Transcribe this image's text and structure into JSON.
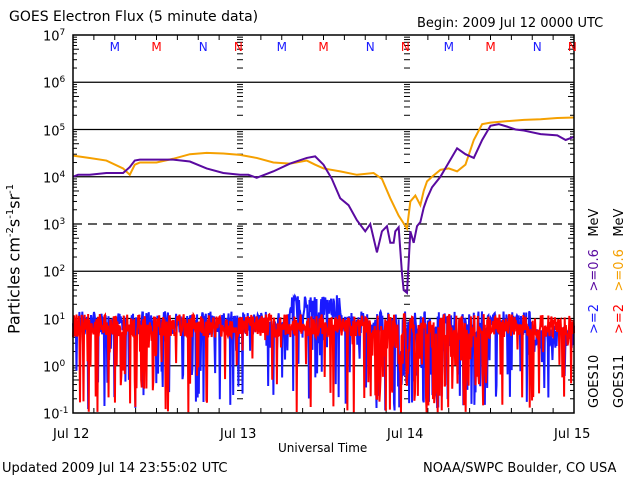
{
  "chart_data": {
    "type": "line",
    "title": "GOES Electron Flux (5 minute data)",
    "subtitle": "Begin: 2009 Jul 12 0000 UTC",
    "xlabel": "Universal Time",
    "ylabel": "Particles cm⁻²s⁻¹sr⁻¹",
    "ylabel_parts": {
      "base": "Particles cm",
      "e1": "-2",
      "s": "s",
      "e2": "-1",
      "sr": "sr",
      "e3": "-1"
    },
    "yscale": "log",
    "ylim": [
      0.1,
      10000000
    ],
    "xlim": [
      0,
      3
    ],
    "x_ticks": [
      {
        "value": 0,
        "label": "Jul 12"
      },
      {
        "value": 1,
        "label": "Jul 13"
      },
      {
        "value": 2,
        "label": "Jul 14"
      },
      {
        "value": 3,
        "label": "Jul 15"
      }
    ],
    "y_ticks": [
      {
        "exp": 7,
        "label": "10",
        "sup": "7"
      },
      {
        "exp": 6,
        "label": "10",
        "sup": "6"
      },
      {
        "exp": 5,
        "label": "10",
        "sup": "5"
      },
      {
        "exp": 4,
        "label": "10",
        "sup": "4"
      },
      {
        "exp": 3,
        "label": "10",
        "sup": "3"
      },
      {
        "exp": 2,
        "label": "10",
        "sup": "2"
      },
      {
        "exp": 1,
        "label": "10",
        "sup": "1"
      },
      {
        "exp": 0,
        "label": "10",
        "sup": "0"
      },
      {
        "exp": -1,
        "label": "10",
        "sup": "-1"
      }
    ],
    "grid_lines": [
      {
        "exp": 6,
        "style": "solid"
      },
      {
        "exp": 5,
        "style": "solid"
      },
      {
        "exp": 4,
        "style": "solid"
      },
      {
        "exp": 3,
        "style": "dashed"
      },
      {
        "exp": 2,
        "style": "solid"
      },
      {
        "exp": 1,
        "style": "solid"
      },
      {
        "exp": 0,
        "style": "solid"
      }
    ],
    "noon_midnight_markers": [
      {
        "x": 0.25,
        "label": "M",
        "color": "#1a1aff"
      },
      {
        "x": 0.5,
        "label": "M",
        "color": "#ff0000"
      },
      {
        "x": 0.78,
        "label": "N",
        "color": "#1a1aff"
      },
      {
        "x": 0.99,
        "label": "N",
        "color": "#ff0000"
      },
      {
        "x": 1.25,
        "label": "M",
        "color": "#1a1aff"
      },
      {
        "x": 1.5,
        "label": "M",
        "color": "#ff0000"
      },
      {
        "x": 1.78,
        "label": "N",
        "color": "#1a1aff"
      },
      {
        "x": 1.99,
        "label": "N",
        "color": "#ff0000"
      },
      {
        "x": 2.25,
        "label": "M",
        "color": "#1a1aff"
      },
      {
        "x": 2.5,
        "label": "M",
        "color": "#ff0000"
      },
      {
        "x": 2.78,
        "label": "N",
        "color": "#1a1aff"
      },
      {
        "x": 2.99,
        "label": "N",
        "color": "#ff0000"
      }
    ],
    "series": [
      {
        "name": "GOES10 >=0.6 MeV",
        "color": "#5a0aa0",
        "x": [
          0.0,
          0.03,
          0.1,
          0.2,
          0.3,
          0.34,
          0.37,
          0.4,
          0.5,
          0.6,
          0.7,
          0.8,
          0.9,
          1.0,
          1.05,
          1.1,
          1.2,
          1.3,
          1.4,
          1.45,
          1.5,
          1.55,
          1.6,
          1.65,
          1.7,
          1.75,
          1.78,
          1.82,
          1.85,
          1.88,
          1.9,
          1.92,
          1.93,
          1.95,
          1.97,
          1.98,
          2.0,
          2.02,
          2.04,
          2.06,
          2.08,
          2.1,
          2.12,
          2.15,
          2.2,
          2.25,
          2.3,
          2.35,
          2.4,
          2.45,
          2.5,
          2.55,
          2.6,
          2.65,
          2.7,
          2.8,
          2.9,
          2.95,
          3.0
        ],
        "values": [
          10000,
          11000,
          11000,
          12000,
          12000,
          16000,
          22000,
          23000,
          23000,
          23000,
          21000,
          15000,
          12000,
          11000,
          11000,
          9500,
          13000,
          19000,
          25000,
          27000,
          18000,
          9000,
          3500,
          2500,
          1200,
          700,
          1000,
          250,
          700,
          900,
          400,
          400,
          700,
          850,
          90,
          40,
          35,
          700,
          400,
          900,
          1100,
          2200,
          3500,
          6000,
          10000,
          20000,
          40000,
          30000,
          25000,
          60000,
          120000,
          130000,
          115000,
          100000,
          95000,
          80000,
          75000,
          60000,
          70000
        ]
      },
      {
        "name": "GOES11 >=0.6 MeV",
        "color": "#f5a000",
        "x": [
          0.0,
          0.1,
          0.2,
          0.3,
          0.34,
          0.37,
          0.4,
          0.5,
          0.6,
          0.7,
          0.8,
          0.9,
          1.0,
          1.1,
          1.2,
          1.3,
          1.4,
          1.45,
          1.5,
          1.6,
          1.7,
          1.8,
          1.85,
          1.9,
          1.95,
          2.0,
          2.02,
          2.05,
          2.08,
          2.1,
          2.12,
          2.15,
          2.2,
          2.25,
          2.3,
          2.35,
          2.4,
          2.45,
          2.5,
          2.6,
          2.7,
          2.8,
          2.9,
          3.0
        ],
        "values": [
          28000,
          25000,
          22000,
          15000,
          11000,
          18000,
          20000,
          20000,
          24000,
          30000,
          32000,
          31000,
          29000,
          25000,
          20000,
          19000,
          22000,
          18000,
          15000,
          13000,
          11000,
          12000,
          9000,
          3500,
          1500,
          800,
          3000,
          4000,
          2500,
          5000,
          8000,
          10000,
          14000,
          15000,
          13000,
          18000,
          60000,
          130000,
          140000,
          150000,
          160000,
          165000,
          175000,
          180000
        ]
      },
      {
        "name": "GOES10 >=2 MeV",
        "color": "#1a1aff",
        "description_values_range": [
          0.1,
          30
        ],
        "typical_level": 8
      },
      {
        "name": "GOES11 >=2 MeV",
        "color": "#ff0000",
        "description_values_range": [
          0.1,
          15
        ],
        "typical_level": 7
      }
    ],
    "legend": {
      "placement": "right",
      "columns": [
        {
          "satellite": "GOES10",
          "entries": [
            {
              "text": ">=2",
              "color": "#1a1aff"
            },
            {
              "text": ">=0.6",
              "color": "#5a0aa0"
            }
          ],
          "unit": "MeV"
        },
        {
          "satellite": "GOES11",
          "entries": [
            {
              "text": ">=2",
              "color": "#ff0000"
            },
            {
              "text": ">=0.6",
              "color": "#f5a000"
            }
          ],
          "unit": "MeV"
        }
      ]
    }
  },
  "footer": {
    "updated": "Updated 2009 Jul 14 23:55:02 UTC",
    "credit": "NOAA/SWPC Boulder, CO USA"
  }
}
